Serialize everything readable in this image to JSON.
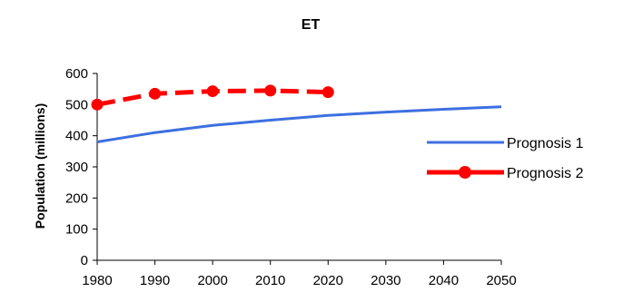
{
  "chart_data": {
    "type": "line",
    "title": "ET",
    "xlabel": "",
    "ylabel": "Population (millions)",
    "xlim": [
      1980,
      2050
    ],
    "ylim": [
      0,
      600
    ],
    "xticks": [
      1980,
      1990,
      2000,
      2010,
      2020,
      2030,
      2040,
      2050
    ],
    "yticks": [
      0,
      100,
      200,
      300,
      400,
      500,
      600
    ],
    "grid": false,
    "legend": "right",
    "series": [
      {
        "name": "Prognosis 1",
        "color": "#3d6fe0",
        "style": "solid",
        "x": [
          1980,
          1990,
          2000,
          2010,
          2020,
          2030,
          2040,
          2050
        ],
        "y": [
          380,
          410,
          433,
          450,
          465,
          476,
          485,
          493
        ]
      },
      {
        "name": "Prognosis 2",
        "color": "#ff0000",
        "style": "dashed-markers",
        "x": [
          1980,
          1990,
          2000,
          2010,
          2020
        ],
        "y": [
          500,
          535,
          543,
          545,
          540
        ]
      }
    ]
  }
}
